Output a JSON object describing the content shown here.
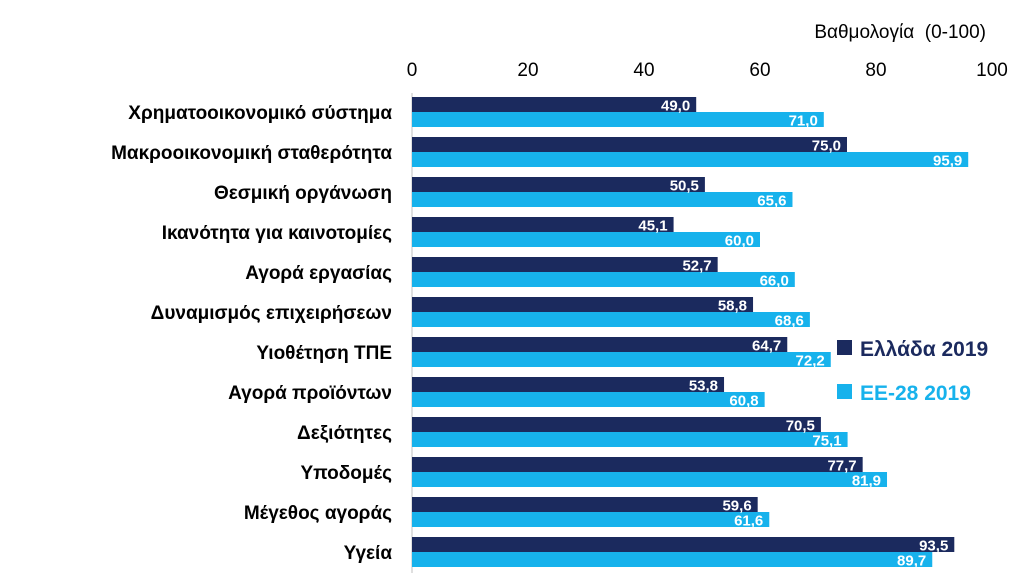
{
  "chart_data": {
    "type": "bar",
    "orientation": "horizontal",
    "xlabel": "Βαθμολογία  (0-100)",
    "xlim": [
      0,
      100
    ],
    "ticks": [
      "0",
      "20",
      "40",
      "60",
      "80",
      "100"
    ],
    "tick_values": [
      0,
      20,
      40,
      60,
      80,
      100
    ],
    "grid": false,
    "legend_position": "right",
    "categories": [
      "Χρηματοοικονομικό  σύστημα",
      "Μακροοικονομική  σταθερότητα",
      "Θεσμική  οργάνωση",
      "Ικανότητα  για  καινοτομίες",
      "Αγορά  εργασίας",
      "Δυναμισμός  επιχειρήσεων",
      "Υιοθέτηση  ΤΠΕ",
      "Αγορά  προϊόντων",
      "Δεξιότητες",
      "Υποδομές",
      "Μέγεθος αγοράς",
      "Υγεία"
    ],
    "series": [
      {
        "name": "Ελλάδα 2019",
        "color": "#1b2a5e",
        "values": [
          49.0,
          75.0,
          50.5,
          45.1,
          52.7,
          58.8,
          64.7,
          53.8,
          70.5,
          77.7,
          59.6,
          93.5
        ],
        "labels": [
          "49,0",
          "75,0",
          "50,5",
          "45,1",
          "52,7",
          "58,8",
          "64,7",
          "53,8",
          "70,5",
          "77,7",
          "59,6",
          "93,5"
        ]
      },
      {
        "name": "ΕΕ-28 2019",
        "color": "#17b2ec",
        "values": [
          71.0,
          95.9,
          65.6,
          60.0,
          66.0,
          68.6,
          72.2,
          60.8,
          75.1,
          81.9,
          61.6,
          89.7
        ],
        "labels": [
          "71,0",
          "95,9",
          "65,6",
          "60,0",
          "66,0",
          "68,6",
          "72,2",
          "60,8",
          "75,1",
          "81,9",
          "61,6",
          "89,7"
        ]
      }
    ]
  }
}
